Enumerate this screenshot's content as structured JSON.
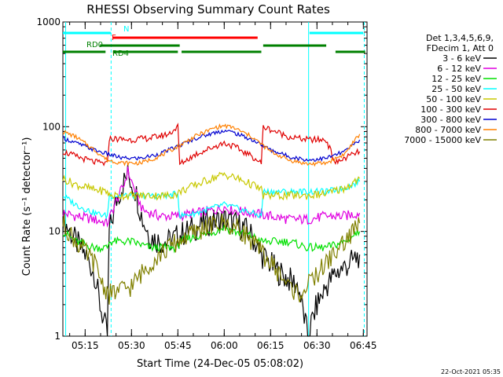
{
  "chart_data": {
    "type": "line",
    "title": "RHESSI Observing Summary Count Rates",
    "xlabel": "Start Time (24-Dec-05 05:08:02)",
    "ylabel": "Count Rate (s⁻¹ detector⁻¹)",
    "y_scale": "log",
    "ylim": [
      1,
      1000
    ],
    "y_ticks": [
      {
        "value": 1,
        "label": "1"
      },
      {
        "value": 10,
        "label": "10"
      },
      {
        "value": 100,
        "label": "100"
      },
      {
        "value": 1000,
        "label": "1000"
      }
    ],
    "x_range_minutes": [
      5.13,
      6.77
    ],
    "x_ticks": [
      {
        "value": 5.25,
        "label": "05:15"
      },
      {
        "value": 5.5,
        "label": "05:30"
      },
      {
        "value": 5.75,
        "label": "05:45"
      },
      {
        "value": 6.0,
        "label": "06:00"
      },
      {
        "value": 6.25,
        "label": "06:15"
      },
      {
        "value": 6.5,
        "label": "06:30"
      },
      {
        "value": 6.75,
        "label": "06:45"
      }
    ],
    "legend_header": [
      "Det 1,3,4,5,6,9,",
      "FDecim 1, Att 0"
    ],
    "legend_position": "right",
    "series": [
      {
        "name": "3 - 6 keV",
        "color": "#000000",
        "points": [
          [
            5.13,
            13
          ],
          [
            5.2,
            8
          ],
          [
            5.25,
            6
          ],
          [
            5.3,
            4
          ],
          [
            5.33,
            2
          ],
          [
            5.37,
            1
          ],
          [
            5.38,
            10
          ],
          [
            5.42,
            20
          ],
          [
            5.46,
            30
          ],
          [
            5.48,
            35
          ],
          [
            5.52,
            25
          ],
          [
            5.56,
            13
          ],
          [
            5.6,
            9
          ],
          [
            5.65,
            8
          ],
          [
            5.7,
            8
          ],
          [
            5.75,
            9
          ],
          [
            5.8,
            10
          ],
          [
            5.9,
            12
          ],
          [
            6.0,
            13
          ],
          [
            6.1,
            11
          ],
          [
            6.15,
            9
          ],
          [
            6.2,
            6
          ],
          [
            6.3,
            4
          ],
          [
            6.4,
            3
          ],
          [
            6.45,
            1
          ],
          [
            6.5,
            2
          ],
          [
            6.55,
            3
          ],
          [
            6.6,
            4
          ],
          [
            6.68,
            5
          ],
          [
            6.73,
            6
          ]
        ]
      },
      {
        "name": "6 - 12 keV",
        "color": "#e000e0",
        "points": [
          [
            5.13,
            15
          ],
          [
            5.2,
            14
          ],
          [
            5.3,
            13
          ],
          [
            5.37,
            12
          ],
          [
            5.42,
            20
          ],
          [
            5.46,
            28
          ],
          [
            5.48,
            38
          ],
          [
            5.52,
            24
          ],
          [
            5.56,
            16
          ],
          [
            5.65,
            14
          ],
          [
            5.75,
            14
          ],
          [
            5.85,
            15
          ],
          [
            5.95,
            16
          ],
          [
            6.0,
            17
          ],
          [
            6.05,
            16
          ],
          [
            6.15,
            15
          ],
          [
            6.25,
            14
          ],
          [
            6.35,
            13
          ],
          [
            6.45,
            13
          ],
          [
            6.55,
            14
          ],
          [
            6.65,
            14
          ],
          [
            6.73,
            15
          ]
        ]
      },
      {
        "name": "12 - 25 keV",
        "color": "#00e000",
        "points": [
          [
            5.13,
            10
          ],
          [
            5.2,
            8
          ],
          [
            5.3,
            7
          ],
          [
            5.37,
            7
          ],
          [
            5.38,
            8
          ],
          [
            5.5,
            8
          ],
          [
            5.6,
            7
          ],
          [
            5.7,
            7
          ],
          [
            5.75,
            7
          ],
          [
            5.76,
            8
          ],
          [
            5.85,
            9
          ],
          [
            5.95,
            10
          ],
          [
            6.0,
            11
          ],
          [
            6.05,
            10
          ],
          [
            6.15,
            9
          ],
          [
            6.2,
            8
          ],
          [
            6.21,
            8
          ],
          [
            6.35,
            8
          ],
          [
            6.45,
            7
          ],
          [
            6.55,
            7
          ],
          [
            6.65,
            8
          ],
          [
            6.73,
            10
          ]
        ]
      },
      {
        "name": "25 - 50 keV",
        "color": "#00ffff",
        "points": [
          [
            5.13,
            22
          ],
          [
            5.2,
            18
          ],
          [
            5.3,
            15
          ],
          [
            5.37,
            14
          ],
          [
            5.38,
            22
          ],
          [
            5.5,
            22
          ],
          [
            5.6,
            22
          ],
          [
            5.7,
            22
          ],
          [
            5.75,
            23
          ],
          [
            5.76,
            14
          ],
          [
            5.85,
            15
          ],
          [
            5.95,
            17
          ],
          [
            6.0,
            18
          ],
          [
            6.05,
            17
          ],
          [
            6.15,
            15
          ],
          [
            6.2,
            14
          ],
          [
            6.21,
            24
          ],
          [
            6.35,
            24
          ],
          [
            6.45,
            24
          ],
          [
            6.55,
            24
          ],
          [
            6.65,
            26
          ],
          [
            6.73,
            30
          ]
        ]
      },
      {
        "name": "50 - 100 keV",
        "color": "#c8c800",
        "points": [
          [
            5.13,
            32
          ],
          [
            5.2,
            28
          ],
          [
            5.3,
            25
          ],
          [
            5.37,
            24
          ],
          [
            5.38,
            22
          ],
          [
            5.5,
            22
          ],
          [
            5.6,
            22
          ],
          [
            5.7,
            22
          ],
          [
            5.75,
            23
          ],
          [
            5.76,
            24
          ],
          [
            5.85,
            28
          ],
          [
            5.95,
            33
          ],
          [
            6.0,
            35
          ],
          [
            6.05,
            33
          ],
          [
            6.15,
            28
          ],
          [
            6.2,
            25
          ],
          [
            6.21,
            22
          ],
          [
            6.35,
            22
          ],
          [
            6.45,
            22
          ],
          [
            6.55,
            23
          ],
          [
            6.65,
            26
          ],
          [
            6.73,
            32
          ]
        ]
      },
      {
        "name": "100 - 300 keV",
        "color": "#e00000",
        "points": [
          [
            5.13,
            58
          ],
          [
            5.2,
            52
          ],
          [
            5.3,
            46
          ],
          [
            5.37,
            44
          ],
          [
            5.38,
            77
          ],
          [
            5.5,
            75
          ],
          [
            5.6,
            78
          ],
          [
            5.7,
            85
          ],
          [
            5.75,
            100
          ],
          [
            5.76,
            44
          ],
          [
            5.85,
            55
          ],
          [
            5.95,
            65
          ],
          [
            6.0,
            70
          ],
          [
            6.05,
            65
          ],
          [
            6.15,
            52
          ],
          [
            6.2,
            45
          ],
          [
            6.21,
            100
          ],
          [
            6.35,
            80
          ],
          [
            6.45,
            75
          ],
          [
            6.55,
            75
          ],
          [
            6.6,
            45
          ],
          [
            6.65,
            50
          ],
          [
            6.73,
            58
          ]
        ]
      },
      {
        "name": "300 - 800 keV",
        "color": "#0000d0",
        "points": [
          [
            5.13,
            78
          ],
          [
            5.2,
            70
          ],
          [
            5.3,
            60
          ],
          [
            5.37,
            55
          ],
          [
            5.45,
            50
          ],
          [
            5.55,
            50
          ],
          [
            5.65,
            55
          ],
          [
            5.75,
            65
          ],
          [
            5.85,
            78
          ],
          [
            5.95,
            88
          ],
          [
            6.0,
            92
          ],
          [
            6.05,
            88
          ],
          [
            6.15,
            75
          ],
          [
            6.25,
            60
          ],
          [
            6.35,
            52
          ],
          [
            6.45,
            48
          ],
          [
            6.55,
            50
          ],
          [
            6.65,
            58
          ],
          [
            6.73,
            75
          ]
        ]
      },
      {
        "name": "800 - 7000 keV",
        "color": "#ff8000",
        "points": [
          [
            5.13,
            90
          ],
          [
            5.2,
            80
          ],
          [
            5.3,
            60
          ],
          [
            5.37,
            48
          ],
          [
            5.45,
            45
          ],
          [
            5.55,
            45
          ],
          [
            5.65,
            52
          ],
          [
            5.75,
            65
          ],
          [
            5.85,
            82
          ],
          [
            5.95,
            98
          ],
          [
            6.0,
            102
          ],
          [
            6.05,
            98
          ],
          [
            6.15,
            80
          ],
          [
            6.25,
            58
          ],
          [
            6.35,
            48
          ],
          [
            6.45,
            44
          ],
          [
            6.55,
            45
          ],
          [
            6.65,
            55
          ],
          [
            6.73,
            85
          ]
        ]
      },
      {
        "name": "7000 - 15000 keV",
        "color": "#808000",
        "points": [
          [
            5.13,
            12
          ],
          [
            5.2,
            8
          ],
          [
            5.3,
            5
          ],
          [
            5.35,
            3
          ],
          [
            5.38,
            2.5
          ],
          [
            5.5,
            3
          ],
          [
            5.6,
            5
          ],
          [
            5.7,
            7
          ],
          [
            5.75,
            8
          ],
          [
            5.8,
            9
          ],
          [
            5.9,
            11
          ],
          [
            6.0,
            12
          ],
          [
            6.05,
            11
          ],
          [
            6.1,
            10
          ],
          [
            6.15,
            8
          ],
          [
            6.25,
            5
          ],
          [
            6.35,
            3
          ],
          [
            6.4,
            2.5
          ],
          [
            6.45,
            3
          ],
          [
            6.55,
            5
          ],
          [
            6.65,
            8
          ],
          [
            6.73,
            12
          ]
        ]
      }
    ],
    "status_bars": [
      {
        "label": "N",
        "color": "#00ffff",
        "segments": [
          [
            5.13,
            5.39
          ],
          [
            6.46,
            6.75
          ]
        ]
      },
      {
        "label": "F",
        "color": "#ff0000",
        "segments": [
          [
            5.4,
            6.18
          ]
        ]
      },
      {
        "label": "RD0",
        "color": "#008000",
        "segments": [
          [
            5.33,
            5.76
          ],
          [
            6.21,
            6.55
          ]
        ]
      },
      {
        "label": "RD4",
        "color": "#008000",
        "segments": [
          [
            5.13,
            5.36
          ],
          [
            5.4,
            5.75
          ],
          [
            5.77,
            6.2
          ],
          [
            6.6,
            6.76
          ]
        ]
      }
    ],
    "vertical_markers": [
      {
        "x": 5.145,
        "color": "#00ffff",
        "style": "solid"
      },
      {
        "x": 5.39,
        "color": "#00ffff",
        "style": "dashed"
      },
      {
        "x": 6.455,
        "color": "#00ffff",
        "style": "solid"
      },
      {
        "x": 6.755,
        "color": "#00ffff",
        "style": "dashed"
      }
    ]
  },
  "footer": {
    "timestamp": "22-Oct-2021 05:35"
  }
}
